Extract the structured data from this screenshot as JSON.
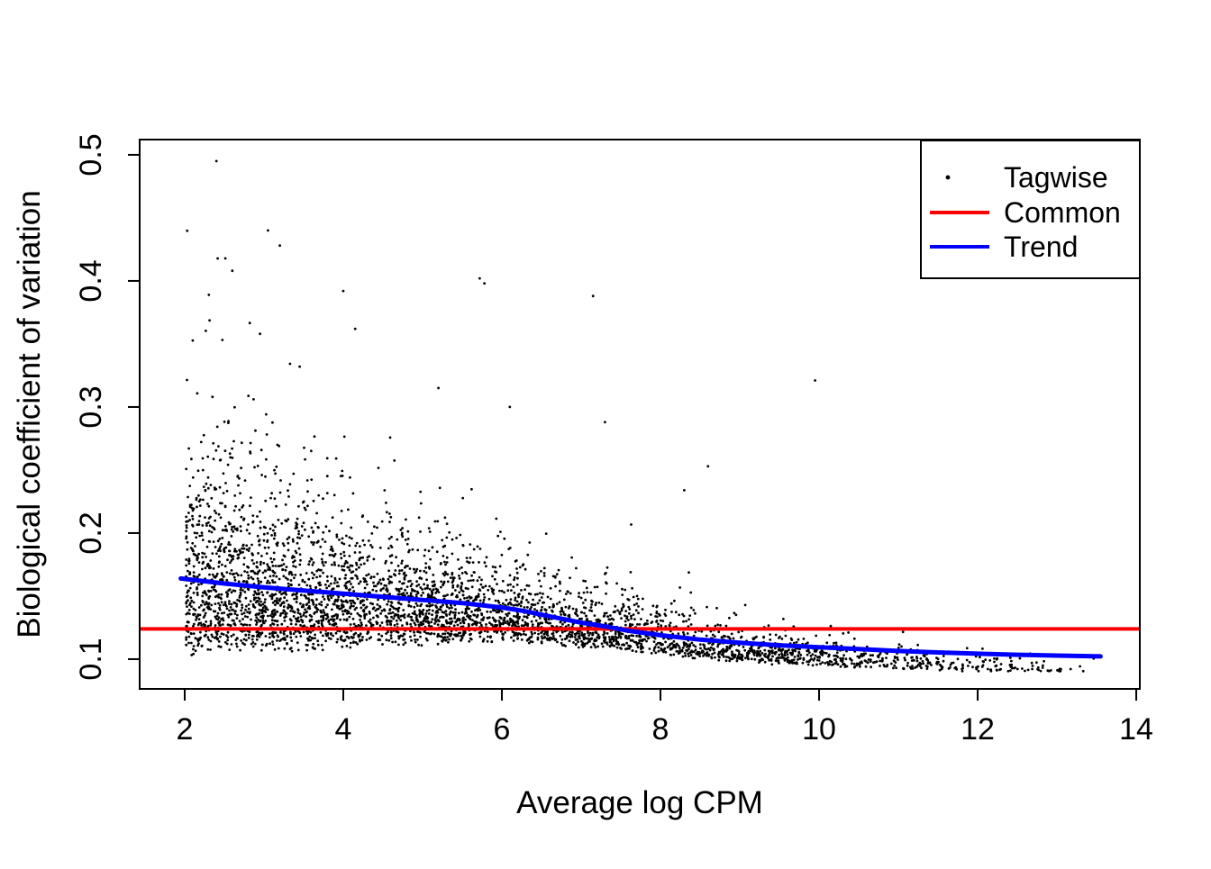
{
  "chart_data": {
    "type": "scatter",
    "title": "",
    "xlabel": "Average log CPM",
    "ylabel": "Biological coefficient of variation",
    "xlim": [
      1.432,
      14.045
    ],
    "ylim": [
      0.0764,
      0.5121
    ],
    "x_ticks": [
      2,
      4,
      6,
      8,
      10,
      12,
      14
    ],
    "y_ticks": [
      "0.1",
      "0.2",
      "0.3",
      "0.4",
      "0.5"
    ],
    "grid": false,
    "legend": {
      "position": "topright",
      "entries": [
        {
          "label": "Tagwise",
          "type": "point",
          "color": "#000000"
        },
        {
          "label": "Common",
          "type": "line",
          "color": "#ff0000"
        },
        {
          "label": "Trend",
          "type": "line",
          "color": "#0000ff"
        }
      ]
    },
    "common_line": {
      "value": 0.124,
      "color": "#ff0000"
    },
    "trend_line": {
      "color": "#0000ff",
      "points": [
        [
          1.95,
          0.164
        ],
        [
          2.5,
          0.16
        ],
        [
          3.0,
          0.157
        ],
        [
          3.5,
          0.1545
        ],
        [
          4.0,
          0.152
        ],
        [
          4.5,
          0.1495
        ],
        [
          5.0,
          0.147
        ],
        [
          5.5,
          0.1445
        ],
        [
          6.0,
          0.141
        ],
        [
          6.3,
          0.138
        ],
        [
          6.6,
          0.134
        ],
        [
          7.0,
          0.129
        ],
        [
          7.3,
          0.126
        ],
        [
          7.6,
          0.1225
        ],
        [
          8.0,
          0.119
        ],
        [
          8.5,
          0.1155
        ],
        [
          9.0,
          0.113
        ],
        [
          9.5,
          0.111
        ],
        [
          10.0,
          0.1095
        ],
        [
          10.5,
          0.108
        ],
        [
          11.0,
          0.1065
        ],
        [
          11.5,
          0.1053
        ],
        [
          12.0,
          0.1043
        ],
        [
          12.5,
          0.1035
        ],
        [
          13.0,
          0.1028
        ],
        [
          13.55,
          0.1022
        ]
      ]
    },
    "tagwise_scatter": {
      "color": "#000000",
      "marker_radius": 1.4,
      "n_points": 4200,
      "seed": 42,
      "model": {
        "x_scale": 11.6,
        "x_pow": 0.45,
        "x_min": 2.02,
        "x_max": 13.55,
        "floor_base": 0.62,
        "floor_gain": 0.24,
        "floor_span": 5.5,
        "spread_base": 0.45,
        "spread_half_life": 3.4,
        "y_min": 0.0905,
        "y_max": 0.505
      },
      "outliers": [
        [
          2.4,
          0.495
        ],
        [
          3.05,
          0.44
        ],
        [
          3.2,
          0.428
        ],
        [
          2.6,
          0.408
        ],
        [
          4.0,
          0.392
        ],
        [
          5.72,
          0.402
        ],
        [
          5.78,
          0.398
        ],
        [
          7.15,
          0.388
        ],
        [
          9.95,
          0.321
        ],
        [
          4.15,
          0.362
        ],
        [
          2.95,
          0.358
        ],
        [
          3.45,
          0.332
        ],
        [
          2.35,
          0.308
        ],
        [
          5.2,
          0.315
        ],
        [
          6.1,
          0.3
        ],
        [
          7.3,
          0.288
        ],
        [
          8.6,
          0.253
        ],
        [
          8.3,
          0.234
        ]
      ]
    }
  }
}
